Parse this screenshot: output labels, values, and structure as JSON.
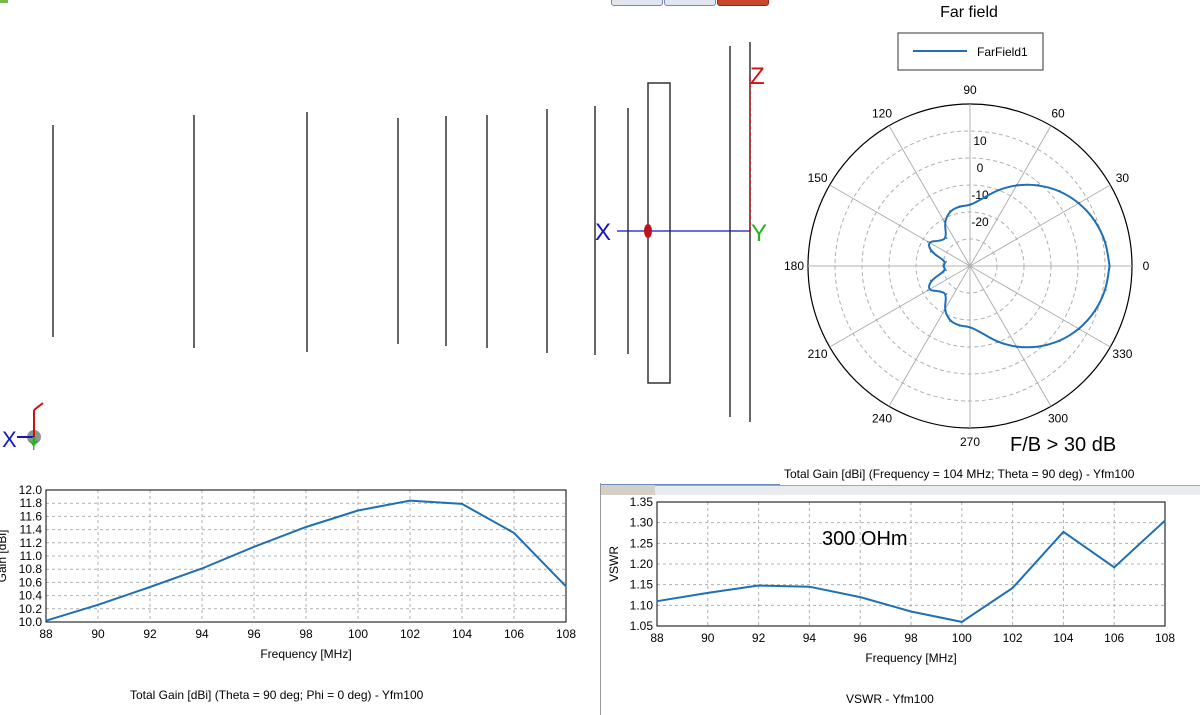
{
  "geometry_window": {
    "axis_labels": {
      "x": "X",
      "y": "Y",
      "z": "Z"
    },
    "triad_labels": {
      "x": "X",
      "y": "Y"
    }
  },
  "charts": {
    "far_field": {
      "title": "Far field",
      "caption": "Total Gain [dBi] (Frequency = 104 MHz; Theta = 90 deg) - Yfm100",
      "annotation": "F/B > 30 dB"
    },
    "gain": {
      "caption": "Total Gain [dBi] (Theta = 90 deg; Phi = 0 deg) - Yfm100"
    },
    "vswr": {
      "caption": "VSWR - Yfm100",
      "annotation": "300 OHm"
    }
  },
  "colors": {
    "series": "#1f6fb4",
    "grid": "#b0b0b0",
    "axis_x": "#1515c8",
    "axis_y": "#22b522",
    "axis_z": "#d01010"
  },
  "chart_data": [
    {
      "type": "polar",
      "title": "Far field",
      "legend": [
        "FarField1"
      ],
      "legend_position": "top",
      "radial_ticks": [
        -20,
        -10,
        0,
        10
      ],
      "radial_range": [
        -40,
        20
      ],
      "angle_ticks": [
        0,
        30,
        60,
        90,
        120,
        150,
        180,
        210,
        240,
        270,
        300,
        330
      ],
      "series": [
        {
          "name": "FarField1",
          "angle_deg": [
            0,
            10,
            20,
            30,
            40,
            50,
            60,
            70,
            80,
            90,
            100,
            110,
            120,
            130,
            140,
            150,
            160,
            170,
            180,
            190,
            200,
            210,
            220,
            230,
            240,
            250,
            260,
            270,
            280,
            290,
            300,
            310,
            320,
            330,
            340,
            350
          ],
          "gain_dbi": [
            11.7,
            11.1,
            9.4,
            6.8,
            3.4,
            -0.7,
            -5.2,
            -10.0,
            -14.8,
            -17.5,
            -17.5,
            -18.3,
            -21.0,
            -26.5,
            -25.5,
            -22.0,
            -24.5,
            -31.0,
            -30.0,
            -31.0,
            -24.5,
            -22.0,
            -25.5,
            -26.5,
            -21.0,
            -18.3,
            -17.5,
            -17.5,
            -14.8,
            -10.0,
            -5.2,
            -0.7,
            3.4,
            6.8,
            9.4,
            11.1
          ]
        }
      ],
      "grid": true
    },
    {
      "type": "line",
      "title": "",
      "xlabel": "Frequency [MHz]",
      "ylabel": "Gain [dBi]",
      "x": [
        88,
        90,
        92,
        94,
        96,
        98,
        100,
        102,
        104,
        106,
        108
      ],
      "xlim": [
        88,
        108
      ],
      "ylim": [
        10.0,
        12.0
      ],
      "xticks": [
        88,
        90,
        92,
        94,
        96,
        98,
        100,
        102,
        104,
        106,
        108
      ],
      "yticks": [
        "10.0",
        "10.2",
        "10.4",
        "10.6",
        "10.8",
        "11.0",
        "11.2",
        "11.4",
        "11.6",
        "11.8",
        "12.0"
      ],
      "series": [
        {
          "values": [
            10.02,
            10.26,
            10.53,
            10.81,
            11.14,
            11.44,
            11.69,
            11.84,
            11.79,
            11.35,
            10.54
          ]
        }
      ],
      "grid": true
    },
    {
      "type": "line",
      "title": "",
      "xlabel": "Frequency [MHz]",
      "ylabel": "VSWR",
      "x": [
        88,
        90,
        92,
        94,
        96,
        98,
        100,
        102,
        104,
        106,
        108
      ],
      "xlim": [
        88,
        108
      ],
      "ylim": [
        1.05,
        1.35
      ],
      "xticks": [
        88,
        90,
        92,
        94,
        96,
        98,
        100,
        102,
        104,
        106,
        108
      ],
      "yticks": [
        "1.05",
        "1.10",
        "1.15",
        "1.20",
        "1.25",
        "1.30",
        "1.35"
      ],
      "series": [
        {
          "values": [
            1.11,
            1.13,
            1.148,
            1.145,
            1.12,
            1.085,
            1.06,
            1.142,
            1.278,
            1.192,
            1.305
          ]
        }
      ],
      "grid": true
    }
  ]
}
